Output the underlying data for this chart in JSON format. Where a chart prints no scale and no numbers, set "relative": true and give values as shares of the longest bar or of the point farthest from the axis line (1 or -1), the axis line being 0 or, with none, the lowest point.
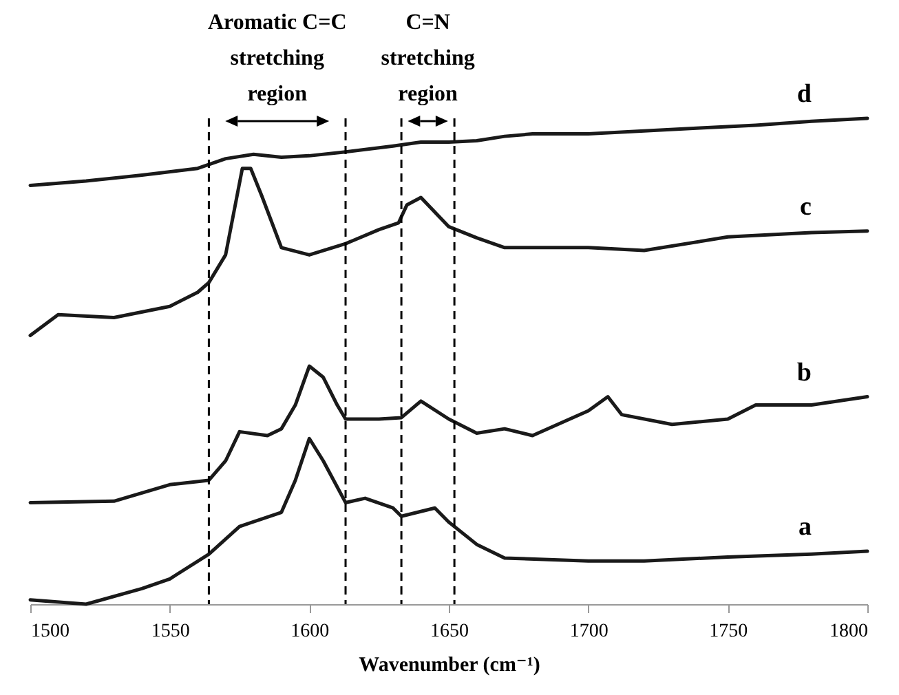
{
  "chart_data": {
    "type": "line",
    "relative": true,
    "xlabel": "Wavenumber (cm⁻¹)",
    "xlim": [
      1500,
      1800
    ],
    "xticks": [
      1500,
      1550,
      1600,
      1650,
      1700,
      1750,
      1800
    ],
    "grid": false,
    "legend": false,
    "line_style": "solid",
    "marker": "none",
    "series": [
      {
        "name": "a",
        "color": "#1a1a1a",
        "x": [
          1500,
          1520,
          1540,
          1550,
          1564,
          1575,
          1590,
          1595,
          1600,
          1605,
          1613,
          1620,
          1630,
          1633,
          1645,
          1650,
          1660,
          1670,
          1700,
          1720,
          1750,
          1780,
          1800
        ],
        "values": [
          0.009,
          0,
          0.032,
          0.052,
          0.103,
          0.16,
          0.189,
          0.255,
          0.341,
          0.295,
          0.209,
          0.218,
          0.198,
          0.181,
          0.198,
          0.169,
          0.123,
          0.095,
          0.089,
          0.089,
          0.097,
          0.103,
          0.109
        ]
      },
      {
        "name": "b",
        "color": "#1a1a1a",
        "x": [
          1500,
          1530,
          1550,
          1564,
          1570,
          1575,
          1585,
          1590,
          1595,
          1600,
          1605,
          1610,
          1613,
          1625,
          1633,
          1640,
          1650,
          1660,
          1670,
          1680,
          1700,
          1707,
          1712,
          1730,
          1750,
          1760,
          1780,
          1800
        ],
        "values": [
          0.209,
          0.212,
          0.246,
          0.255,
          0.295,
          0.355,
          0.347,
          0.361,
          0.41,
          0.49,
          0.467,
          0.41,
          0.381,
          0.381,
          0.384,
          0.418,
          0.381,
          0.352,
          0.361,
          0.347,
          0.398,
          0.427,
          0.39,
          0.37,
          0.381,
          0.41,
          0.41,
          0.427
        ]
      },
      {
        "name": "c",
        "color": "#1a1a1a",
        "x": [
          1500,
          1510,
          1530,
          1550,
          1560,
          1564,
          1570,
          1576,
          1579,
          1583,
          1590,
          1600,
          1613,
          1625,
          1632,
          1635,
          1640,
          1650,
          1660,
          1670,
          1700,
          1720,
          1750,
          1780,
          1800
        ],
        "values": [
          0.553,
          0.596,
          0.59,
          0.613,
          0.642,
          0.662,
          0.719,
          0.897,
          0.897,
          0.84,
          0.734,
          0.719,
          0.742,
          0.771,
          0.785,
          0.822,
          0.837,
          0.777,
          0.754,
          0.734,
          0.734,
          0.728,
          0.756,
          0.765,
          0.768
        ]
      },
      {
        "name": "d",
        "color": "#1a1a1a",
        "x": [
          1500,
          1520,
          1540,
          1560,
          1570,
          1580,
          1590,
          1600,
          1613,
          1630,
          1640,
          1650,
          1660,
          1670,
          1680,
          1700,
          1720,
          1740,
          1750,
          1760,
          1780,
          1800
        ],
        "values": [
          0.862,
          0.871,
          0.883,
          0.897,
          0.917,
          0.926,
          0.92,
          0.923,
          0.931,
          0.943,
          0.951,
          0.951,
          0.954,
          0.963,
          0.968,
          0.968,
          0.974,
          0.98,
          0.983,
          0.986,
          0.994,
          1
        ]
      }
    ],
    "ref_lines": [
      {
        "axis": "x",
        "value": 1564,
        "line_style": "dashed",
        "color": "#000000"
      },
      {
        "axis": "x",
        "value": 1613,
        "line_style": "dashed",
        "color": "#000000"
      },
      {
        "axis": "x",
        "value": 1633,
        "line_style": "dashed",
        "color": "#000000"
      },
      {
        "axis": "x",
        "value": 1652,
        "line_style": "dashed",
        "color": "#000000"
      }
    ],
    "annotations": [
      "Aromatic C=C\nstretching\nregion",
      "C=N\nstretching\nregion"
    ]
  }
}
